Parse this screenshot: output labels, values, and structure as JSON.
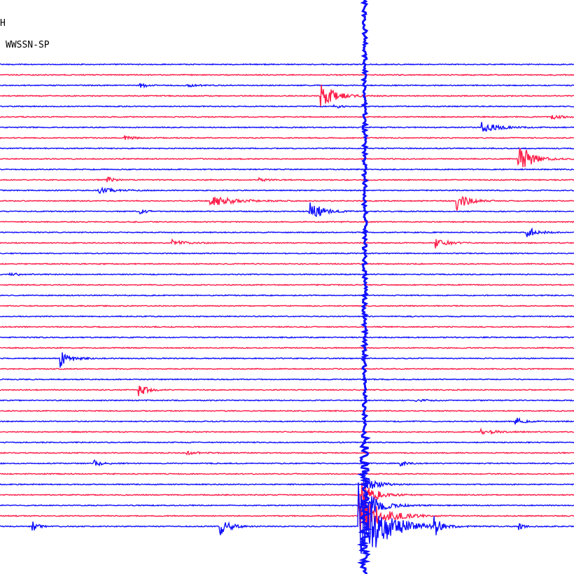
{
  "header": {
    "channel": "H",
    "filter": "WWSSN-SP"
  }
}
